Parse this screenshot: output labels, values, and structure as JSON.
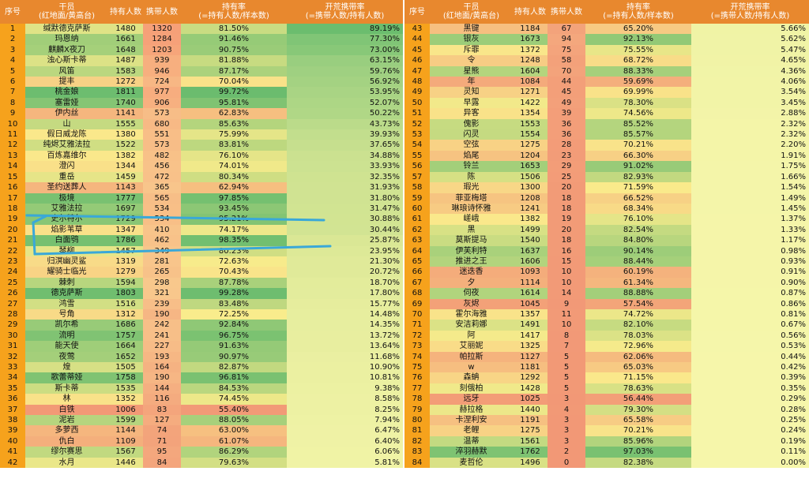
{
  "header": {
    "col_index": "序号",
    "col_operator": "干员\n(红地面/黄高台)",
    "col_owners": "持有人数",
    "col_carriers": "携带人数",
    "col_own_rate": "持有率\n(=持有人数/样本数)",
    "col_carry_rate": "开荒携带率\n(=携带人数/持有人数)"
  },
  "colors": {
    "header_bg": "#e8882e",
    "index_bg": "#f6a21c",
    "name_bg": "#f2a884",
    "annotation": "#3aa8d8"
  },
  "left_rows": [
    [
      "1",
      "缄默德克萨斯",
      "1480",
      "1320",
      "81.50%",
      "89.19%"
    ],
    [
      "2",
      "玛恩纳",
      "1661",
      "1284",
      "91.46%",
      "77.30%"
    ],
    [
      "3",
      "麒麟X夜刀",
      "1648",
      "1203",
      "90.75%",
      "73.00%"
    ],
    [
      "4",
      "浊心斯卡蒂",
      "1487",
      "939",
      "81.88%",
      "63.15%"
    ],
    [
      "5",
      "风笛",
      "1583",
      "946",
      "87.17%",
      "59.76%"
    ],
    [
      "6",
      "提丰",
      "1272",
      "724",
      "70.04%",
      "56.92%"
    ],
    [
      "7",
      "桃金娘",
      "1811",
      "977",
      "99.72%",
      "53.95%"
    ],
    [
      "8",
      "塞雷娅",
      "1740",
      "906",
      "95.81%",
      "52.07%"
    ],
    [
      "9",
      "伊内丝",
      "1141",
      "573",
      "62.83%",
      "50.22%"
    ],
    [
      "10",
      "山",
      "1555",
      "680",
      "85.63%",
      "43.73%"
    ],
    [
      "11",
      "假日威龙陈",
      "1380",
      "551",
      "75.99%",
      "39.93%"
    ],
    [
      "12",
      "纯烬艾雅法拉",
      "1522",
      "573",
      "83.81%",
      "37.65%"
    ],
    [
      "13",
      "百炼嘉维尔",
      "1382",
      "482",
      "76.10%",
      "34.88%"
    ],
    [
      "14",
      "澄闪",
      "1344",
      "456",
      "74.01%",
      "33.93%"
    ],
    [
      "15",
      "重岳",
      "1459",
      "472",
      "80.34%",
      "32.35%"
    ],
    [
      "16",
      "圣约送葬人",
      "1143",
      "365",
      "62.94%",
      "31.93%"
    ],
    [
      "17",
      "极境",
      "1777",
      "565",
      "97.85%",
      "31.80%"
    ],
    [
      "18",
      "艾雅法拉",
      "1697",
      "534",
      "93.45%",
      "31.47%"
    ],
    [
      "19",
      "史尔特尔",
      "1729",
      "534",
      "95.21%",
      "30.88%"
    ],
    [
      "20",
      "焰影苇草",
      "1347",
      "410",
      "74.17%",
      "30.44%"
    ],
    [
      "21",
      "白面鸮",
      "1786",
      "462",
      "98.35%",
      "25.87%"
    ],
    [
      "22",
      "琴柳",
      "1457",
      "349",
      "80.23%",
      "23.95%"
    ],
    [
      "23",
      "归溟幽灵鲨",
      "1319",
      "281",
      "72.63%",
      "21.30%"
    ],
    [
      "24",
      "耀骑士临光",
      "1279",
      "265",
      "70.43%",
      "20.72%"
    ],
    [
      "25",
      "棘刺",
      "1594",
      "298",
      "87.78%",
      "18.70%"
    ],
    [
      "26",
      "德克萨斯",
      "1803",
      "321",
      "99.28%",
      "17.80%"
    ],
    [
      "27",
      "鸿雪",
      "1516",
      "239",
      "83.48%",
      "15.77%"
    ],
    [
      "28",
      "号角",
      "1312",
      "190",
      "72.25%",
      "14.48%"
    ],
    [
      "29",
      "凯尔希",
      "1686",
      "242",
      "92.84%",
      "14.35%"
    ],
    [
      "30",
      "流明",
      "1757",
      "241",
      "96.75%",
      "13.72%"
    ],
    [
      "31",
      "能天使",
      "1664",
      "227",
      "91.63%",
      "13.64%"
    ],
    [
      "32",
      "夜莺",
      "1652",
      "193",
      "90.97%",
      "11.68%"
    ],
    [
      "33",
      "煌",
      "1505",
      "164",
      "82.87%",
      "10.90%"
    ],
    [
      "34",
      "歌蕾蒂娅",
      "1758",
      "190",
      "96.81%",
      "10.81%"
    ],
    [
      "35",
      "斯卡蒂",
      "1535",
      "144",
      "84.53%",
      "9.38%"
    ],
    [
      "36",
      "林",
      "1352",
      "116",
      "74.45%",
      "8.58%"
    ],
    [
      "37",
      "白铁",
      "1006",
      "83",
      "55.40%",
      "8.25%"
    ],
    [
      "38",
      "泥岩",
      "1599",
      "127",
      "88.05%",
      "7.94%"
    ],
    [
      "39",
      "多萝西",
      "1144",
      "74",
      "63.00%",
      "6.47%"
    ],
    [
      "40",
      "仇白",
      "1109",
      "71",
      "61.07%",
      "6.40%"
    ],
    [
      "41",
      "缪尔赛思",
      "1567",
      "95",
      "86.29%",
      "6.06%"
    ],
    [
      "42",
      "水月",
      "1446",
      "84",
      "79.63%",
      "5.81%"
    ]
  ],
  "right_rows": [
    [
      "43",
      "黑键",
      "1184",
      "67",
      "65.20%",
      "5.66%"
    ],
    [
      "44",
      "银灰",
      "1673",
      "94",
      "92.13%",
      "5.62%"
    ],
    [
      "45",
      "斥罪",
      "1372",
      "75",
      "75.55%",
      "5.47%"
    ],
    [
      "46",
      "令",
      "1248",
      "58",
      "68.72%",
      "4.65%"
    ],
    [
      "47",
      "星熊",
      "1604",
      "70",
      "88.33%",
      "4.36%"
    ],
    [
      "48",
      "年",
      "1084",
      "44",
      "59.69%",
      "4.06%"
    ],
    [
      "49",
      "灵知",
      "1271",
      "45",
      "69.99%",
      "3.54%"
    ],
    [
      "50",
      "早露",
      "1422",
      "49",
      "78.30%",
      "3.45%"
    ],
    [
      "51",
      "异客",
      "1354",
      "39",
      "74.56%",
      "2.88%"
    ],
    [
      "52",
      "傀影",
      "1553",
      "36",
      "85.52%",
      "2.32%"
    ],
    [
      "53",
      "闪灵",
      "1554",
      "36",
      "85.57%",
      "2.32%"
    ],
    [
      "54",
      "空弦",
      "1275",
      "28",
      "70.21%",
      "2.20%"
    ],
    [
      "55",
      "焰尾",
      "1204",
      "23",
      "66.30%",
      "1.91%"
    ],
    [
      "56",
      "铃兰",
      "1653",
      "29",
      "91.02%",
      "1.75%"
    ],
    [
      "57",
      "陈",
      "1506",
      "25",
      "82.93%",
      "1.66%"
    ],
    [
      "58",
      "瑕光",
      "1300",
      "20",
      "71.59%",
      "1.54%"
    ],
    [
      "59",
      "菲亚梅塔",
      "1208",
      "18",
      "66.52%",
      "1.49%"
    ],
    [
      "60",
      "琳琅诗怀雅",
      "1241",
      "18",
      "68.34%",
      "1.45%"
    ],
    [
      "61",
      "嵯峨",
      "1382",
      "19",
      "76.10%",
      "1.37%"
    ],
    [
      "62",
      "黑",
      "1499",
      "20",
      "82.54%",
      "1.33%"
    ],
    [
      "63",
      "莫斯提马",
      "1540",
      "18",
      "84.80%",
      "1.17%"
    ],
    [
      "64",
      "伊芙利特",
      "1637",
      "16",
      "90.14%",
      "0.98%"
    ],
    [
      "65",
      "推进之王",
      "1606",
      "15",
      "88.44%",
      "0.93%"
    ],
    [
      "66",
      "迷迭香",
      "1093",
      "10",
      "60.19%",
      "0.91%"
    ],
    [
      "67",
      "夕",
      "1114",
      "10",
      "61.34%",
      "0.90%"
    ],
    [
      "68",
      "伺夜",
      "1614",
      "14",
      "88.88%",
      "0.87%"
    ],
    [
      "69",
      "灰烬",
      "1045",
      "9",
      "57.54%",
      "0.86%"
    ],
    [
      "70",
      "霍尔海雅",
      "1357",
      "11",
      "74.72%",
      "0.81%"
    ],
    [
      "71",
      "安洁莉娜",
      "1491",
      "10",
      "82.10%",
      "0.67%"
    ],
    [
      "72",
      "阿",
      "1417",
      "8",
      "78.03%",
      "0.56%"
    ],
    [
      "73",
      "艾丽妮",
      "1325",
      "7",
      "72.96%",
      "0.53%"
    ],
    [
      "74",
      "帕拉斯",
      "1127",
      "5",
      "62.06%",
      "0.44%"
    ],
    [
      "75",
      "w",
      "1181",
      "5",
      "65.03%",
      "0.42%"
    ],
    [
      "76",
      "森蚺",
      "1292",
      "5",
      "71.15%",
      "0.39%"
    ],
    [
      "77",
      "刻俄柏",
      "1428",
      "5",
      "78.63%",
      "0.35%"
    ],
    [
      "78",
      "远牙",
      "1025",
      "3",
      "56.44%",
      "0.29%"
    ],
    [
      "79",
      "赫拉格",
      "1440",
      "4",
      "79.30%",
      "0.28%"
    ],
    [
      "80",
      "卡涅利安",
      "1191",
      "3",
      "65.58%",
      "0.25%"
    ],
    [
      "81",
      "老鲤",
      "1275",
      "3",
      "70.21%",
      "0.24%"
    ],
    [
      "82",
      "温蒂",
      "1561",
      "3",
      "85.96%",
      "0.19%"
    ],
    [
      "83",
      "淬羽赫默",
      "1762",
      "2",
      "97.03%",
      "0.11%"
    ],
    [
      "84",
      "麦哲伦",
      "1496",
      "0",
      "82.38%",
      "0.00%"
    ]
  ]
}
